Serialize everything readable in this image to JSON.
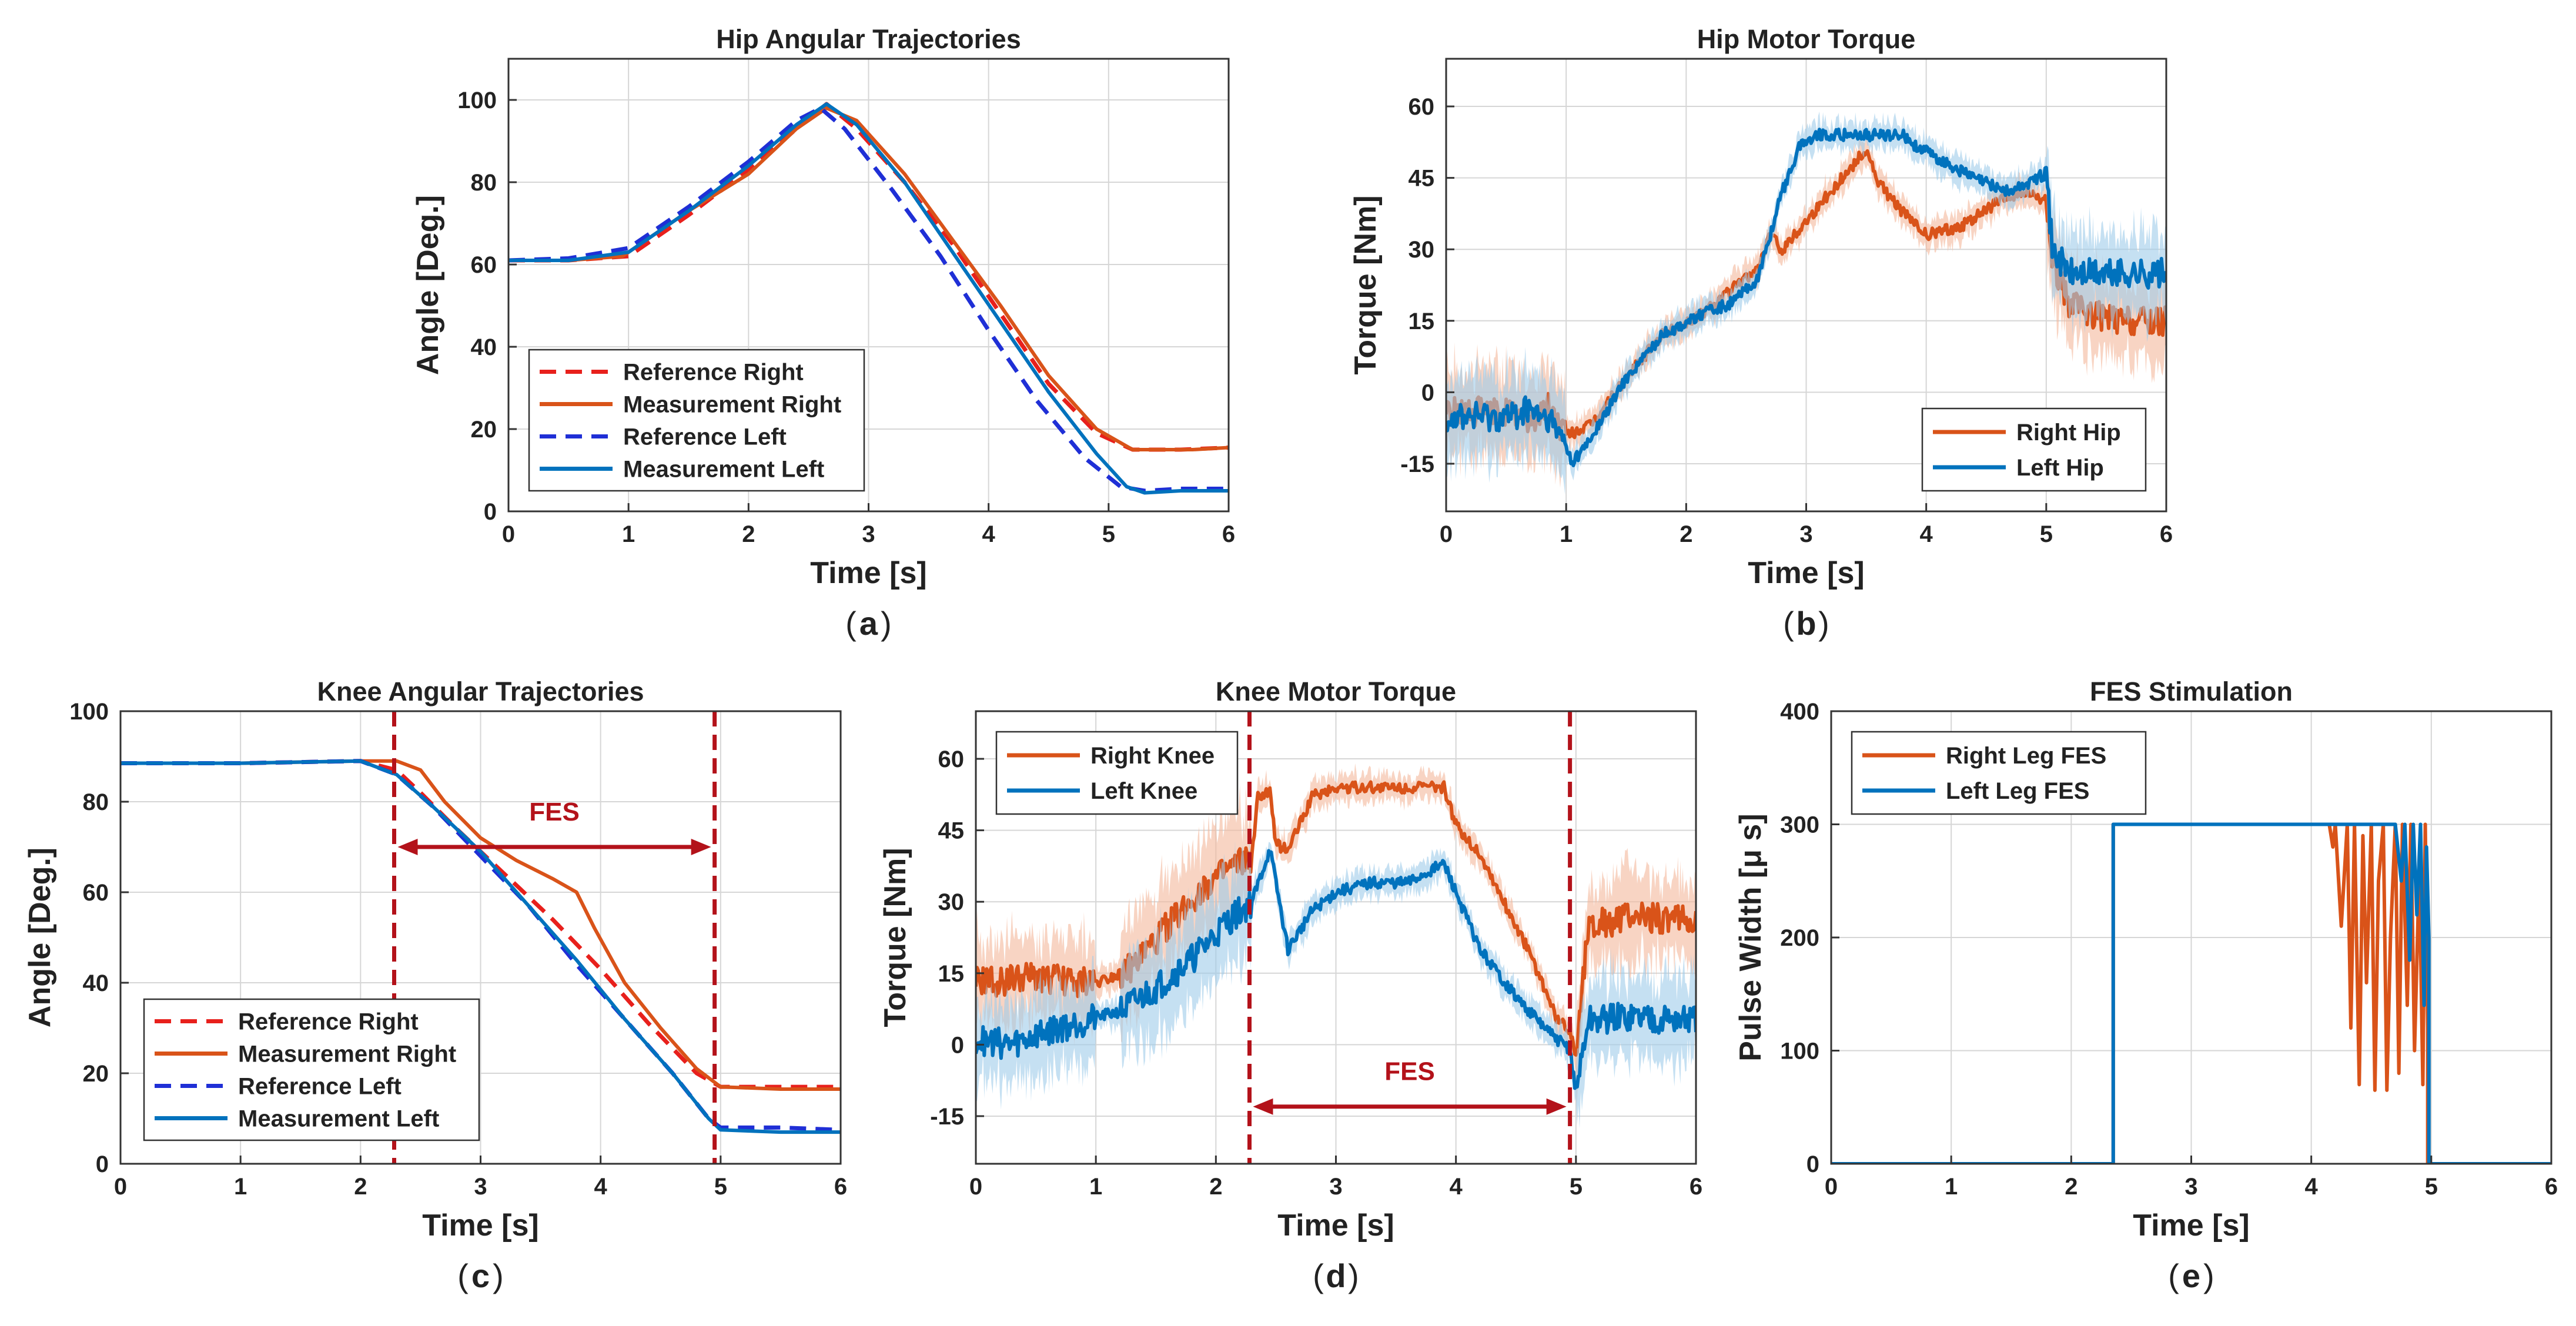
{
  "colors": {
    "ref_right": "#e8201c",
    "meas_right": "#d95319",
    "ref_left": "#1f2fd6",
    "meas_left": "#0072bd",
    "band_right": "#f3b79b",
    "band_left": "#9fcbea",
    "fes_line": "#b3121a",
    "grid": "#d6d6d6"
  },
  "chart_data": [
    {
      "id": "a",
      "type": "line",
      "title": "Hip Angular Trajectories",
      "xlabel": "Time [s]",
      "ylabel": "Angle [Deg.]",
      "caption": "a",
      "xlim": [
        0,
        6
      ],
      "ylim": [
        0,
        110
      ],
      "xticks": [
        0,
        1,
        2,
        3,
        4,
        5,
        6
      ],
      "yticks": [
        0,
        20,
        40,
        60,
        80,
        100
      ],
      "grid": true,
      "legend": "bottom-left",
      "series": [
        {
          "name": "Reference Right",
          "color": "ref_right",
          "dash": true,
          "x": [
            0,
            0.5,
            1.0,
            1.5,
            2.0,
            2.4,
            2.65,
            2.9,
            3.3,
            3.7,
            4.1,
            4.5,
            4.9,
            5.2,
            5.35,
            5.6,
            6.0
          ],
          "y": [
            61,
            61,
            62,
            72,
            83,
            93,
            99,
            93,
            80,
            65,
            48,
            31,
            19,
            15,
            15,
            15,
            15.5
          ]
        },
        {
          "name": "Measurement Right",
          "color": "meas_right",
          "dash": false,
          "x": [
            0,
            0.5,
            0.95,
            1.1,
            1.5,
            2.0,
            2.4,
            2.65,
            2.9,
            3.3,
            3.7,
            4.1,
            4.5,
            4.9,
            5.2,
            5.4,
            5.7,
            6.0
          ],
          "y": [
            61,
            61,
            62,
            65,
            73,
            82,
            93,
            98,
            95,
            82,
            66,
            50,
            33,
            20,
            15,
            15,
            15,
            15.5
          ]
        },
        {
          "name": "Reference Left",
          "color": "ref_left",
          "dash": true,
          "x": [
            0,
            0.5,
            1.0,
            1.5,
            2.0,
            2.4,
            2.6,
            2.8,
            3.2,
            3.6,
            4.0,
            4.4,
            4.8,
            5.1,
            5.3,
            5.6,
            6.0
          ],
          "y": [
            61,
            61.5,
            64,
            74,
            85,
            95,
            98,
            93,
            78,
            62,
            44,
            27,
            13,
            6,
            5,
            5.5,
            5.5
          ]
        },
        {
          "name": "Measurement Left",
          "color": "meas_left",
          "dash": false,
          "x": [
            0,
            0.5,
            1.0,
            1.5,
            2.0,
            2.4,
            2.65,
            2.9,
            3.3,
            3.7,
            4.1,
            4.5,
            4.9,
            5.15,
            5.3,
            5.6,
            6.0
          ],
          "y": [
            61,
            61,
            63,
            73,
            84,
            94,
            99,
            94,
            80,
            63,
            46,
            29,
            14,
            6,
            4.5,
            5,
            5
          ]
        }
      ]
    },
    {
      "id": "b",
      "type": "line",
      "title": "Hip Motor Torque",
      "xlabel": "Time [s]",
      "ylabel": "Torque [Nm]",
      "caption": "b",
      "xlim": [
        0,
        6
      ],
      "ylim": [
        -25,
        70
      ],
      "xticks": [
        0,
        1,
        2,
        3,
        4,
        5,
        6
      ],
      "yticks": [
        -15,
        0,
        15,
        30,
        45,
        60
      ],
      "grid": true,
      "legend": "bottom-right",
      "series": [
        {
          "name": "Right Hip",
          "color": "meas_right",
          "band": "band_right",
          "noisy": true,
          "x": [
            0,
            0.5,
            0.7,
            0.85,
            1.0,
            1.2,
            1.5,
            1.8,
            2.1,
            2.4,
            2.6,
            2.7,
            2.8,
            3.0,
            3.2,
            3.4,
            3.5,
            3.6,
            3.8,
            4.0,
            4.3,
            4.6,
            4.8,
            5.0,
            5.05,
            5.2,
            5.6,
            6.0
          ],
          "y": [
            -4,
            -4,
            -6,
            -3,
            -9,
            -7,
            3,
            12,
            16,
            22,
            26,
            33,
            30,
            36,
            42,
            48,
            51,
            44,
            38,
            33,
            35,
            40,
            42,
            40,
            28,
            18,
            15,
            15
          ]
        },
        {
          "name": "Left Hip",
          "color": "meas_left",
          "band": "band_left",
          "noisy": true,
          "x": [
            0,
            0.5,
            0.7,
            0.85,
            1.0,
            1.05,
            1.2,
            1.5,
            1.8,
            2.1,
            2.4,
            2.6,
            2.8,
            2.95,
            3.1,
            3.4,
            3.8,
            3.9,
            4.1,
            4.4,
            4.7,
            5.0,
            5.05,
            5.2,
            5.6,
            6.0
          ],
          "y": [
            -5,
            -5,
            -4,
            -6,
            -11,
            -15,
            -10,
            3,
            12,
            16,
            19,
            24,
            42,
            52,
            54,
            54,
            54,
            52,
            49,
            45,
            42,
            46,
            30,
            25,
            25,
            25
          ]
        }
      ]
    },
    {
      "id": "c",
      "type": "line",
      "title": "Knee Angular Trajectories",
      "xlabel": "Time [s]",
      "ylabel": "Angle [Deg.]",
      "caption": "c",
      "xlim": [
        0,
        6
      ],
      "ylim": [
        0,
        100
      ],
      "xticks": [
        0,
        1,
        2,
        3,
        4,
        5,
        6
      ],
      "yticks": [
        0,
        20,
        40,
        60,
        80,
        100
      ],
      "grid": true,
      "legend": "bottom-left",
      "fes_lines": [
        2.28,
        4.95
      ],
      "fes_label": "FES",
      "fes_arrow_y": 70,
      "series": [
        {
          "name": "Reference Right",
          "color": "ref_right",
          "dash": true,
          "x": [
            0,
            1.0,
            2.0,
            2.3,
            2.5,
            2.8,
            3.2,
            3.6,
            4.0,
            4.4,
            4.8,
            5.0,
            5.5,
            6.0
          ],
          "y": [
            88.5,
            88.5,
            89,
            87,
            82,
            74,
            64,
            54,
            43,
            31,
            20,
            17,
            17,
            17
          ]
        },
        {
          "name": "Measurement Right",
          "color": "meas_right",
          "dash": false,
          "x": [
            0,
            1.0,
            2.0,
            2.3,
            2.5,
            2.7,
            3.0,
            3.3,
            3.6,
            3.8,
            3.95,
            4.2,
            4.5,
            4.8,
            5.0,
            5.5,
            6.0
          ],
          "y": [
            88.5,
            88.5,
            89,
            89,
            87,
            80,
            72,
            67,
            63,
            60,
            52,
            40,
            30,
            21,
            17,
            16.5,
            16.5
          ]
        },
        {
          "name": "Reference Left",
          "color": "ref_left",
          "dash": true,
          "x": [
            0,
            1.0,
            2.0,
            2.3,
            2.6,
            3.0,
            3.4,
            3.8,
            4.2,
            4.6,
            4.9,
            5.0,
            5.5,
            6.0
          ],
          "y": [
            88.5,
            88.5,
            89,
            86,
            79,
            68,
            57,
            44,
            32,
            20,
            10,
            8,
            8,
            7.5
          ]
        },
        {
          "name": "Measurement Left",
          "color": "meas_left",
          "dash": false,
          "x": [
            0,
            1.0,
            2.0,
            2.3,
            2.6,
            3.0,
            3.4,
            3.8,
            4.2,
            4.6,
            4.9,
            5.0,
            5.5,
            6.0
          ],
          "y": [
            88.5,
            88.5,
            89,
            86,
            79,
            69,
            57,
            45,
            32,
            20,
            10,
            7.5,
            7,
            7
          ]
        }
      ]
    },
    {
      "id": "d",
      "type": "line",
      "title": "Knee Motor Torque",
      "xlabel": "Time [s]",
      "ylabel": "Torque [Nm]",
      "caption": "d",
      "xlim": [
        0,
        6
      ],
      "ylim": [
        -25,
        70
      ],
      "xticks": [
        0,
        1,
        2,
        3,
        4,
        5,
        6
      ],
      "yticks": [
        -15,
        0,
        15,
        30,
        45,
        60
      ],
      "grid": true,
      "legend": "top-left",
      "fes_lines": [
        2.28,
        4.95
      ],
      "fes_label": "FES",
      "fes_arrow_y": -13,
      "series": [
        {
          "name": "Right Knee",
          "color": "meas_right",
          "band": "band_right",
          "noisy": true,
          "x": [
            0,
            0.5,
            1.0,
            1.3,
            1.6,
            1.9,
            2.2,
            2.3,
            2.35,
            2.45,
            2.5,
            2.6,
            2.8,
            3.0,
            3.5,
            3.9,
            4.0,
            4.2,
            4.4,
            4.6,
            4.85,
            4.95,
            5.0,
            5.1,
            5.5,
            6.0
          ],
          "y": [
            13,
            14,
            13,
            16,
            25,
            33,
            38,
            39,
            52,
            53,
            42,
            41,
            52,
            54,
            54,
            54,
            46,
            40,
            30,
            20,
            5,
            3,
            -2,
            25,
            27,
            26
          ]
        },
        {
          "name": "Left Knee",
          "color": "meas_left",
          "band": "band_left",
          "noisy": true,
          "x": [
            0,
            0.3,
            0.6,
            0.9,
            1.2,
            1.5,
            1.8,
            2.1,
            2.3,
            2.45,
            2.6,
            2.8,
            3.0,
            3.3,
            3.6,
            3.9,
            4.2,
            4.5,
            4.8,
            4.95,
            5.0,
            5.1,
            5.5,
            6.0
          ],
          "y": [
            1,
            0,
            3,
            5,
            7,
            12,
            18,
            26,
            30,
            41,
            20,
            28,
            32,
            34,
            34,
            38,
            20,
            10,
            2,
            -1,
            -10,
            5,
            6,
            5
          ]
        }
      ]
    },
    {
      "id": "e",
      "type": "line",
      "title": "FES Stimulation",
      "xlabel": "Time [s]",
      "ylabel": "Pulse Width [μ s]",
      "caption": "e",
      "xlim": [
        0,
        6
      ],
      "ylim": [
        0,
        400
      ],
      "xticks": [
        0,
        1,
        2,
        3,
        4,
        5,
        6
      ],
      "yticks": [
        0,
        100,
        200,
        300,
        400
      ],
      "grid": true,
      "legend": "top-left",
      "series": [
        {
          "name": "Right Leg FES",
          "color": "meas_right",
          "x": [
            0,
            2.35,
            2.35,
            4.15,
            4.18,
            4.2,
            4.25,
            4.3,
            4.33,
            4.36,
            4.4,
            4.43,
            4.46,
            4.5,
            4.53,
            4.56,
            4.6,
            4.63,
            4.66,
            4.7,
            4.73,
            4.76,
            4.8,
            4.83,
            4.86,
            4.9,
            4.93,
            4.95,
            4.97,
            4.97,
            6.0
          ],
          "y": [
            0,
            0,
            300,
            300,
            280,
            300,
            210,
            300,
            120,
            300,
            70,
            290,
            160,
            300,
            65,
            250,
            300,
            65,
            200,
            300,
            80,
            300,
            140,
            300,
            100,
            260,
            70,
            300,
            120,
            0,
            0
          ]
        },
        {
          "name": "Left Leg FES",
          "color": "meas_left",
          "x": [
            0,
            2.35,
            2.35,
            4.7,
            4.75,
            4.78,
            4.82,
            4.85,
            4.88,
            4.91,
            4.94,
            4.96,
            4.98,
            4.98,
            6.0
          ],
          "y": [
            0,
            0,
            300,
            300,
            250,
            300,
            180,
            300,
            220,
            300,
            140,
            280,
            200,
            0,
            0
          ]
        }
      ]
    }
  ]
}
